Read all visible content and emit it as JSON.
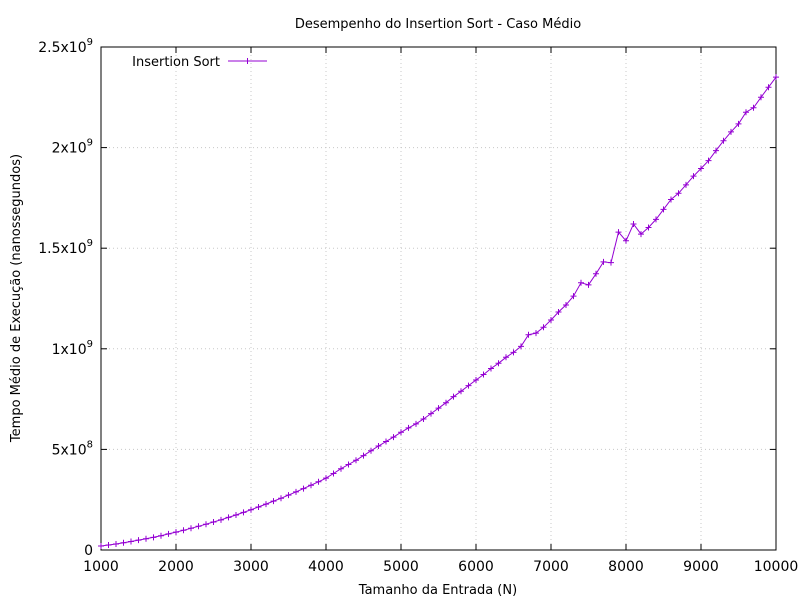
{
  "chart_data": {
    "type": "line",
    "title": "Desempenho do Insertion Sort - Caso Médio",
    "xlabel": "Tamanho da Entrada (N)",
    "ylabel": "Tempo Médio de Execução (nanossegundos)",
    "xlim": [
      1000,
      10000
    ],
    "ylim": [
      0,
      2500000000
    ],
    "grid": true,
    "legend_position": "top-left",
    "x_ticks": [
      {
        "value": 1000,
        "label": "1000"
      },
      {
        "value": 2000,
        "label": "2000"
      },
      {
        "value": 3000,
        "label": "3000"
      },
      {
        "value": 4000,
        "label": "4000"
      },
      {
        "value": 5000,
        "label": "5000"
      },
      {
        "value": 6000,
        "label": "6000"
      },
      {
        "value": 7000,
        "label": "7000"
      },
      {
        "value": 8000,
        "label": "8000"
      },
      {
        "value": 9000,
        "label": "9000"
      },
      {
        "value": 10000,
        "label": "10000"
      }
    ],
    "y_ticks": [
      {
        "value": 0,
        "mantissa": "0",
        "exponent": ""
      },
      {
        "value": 500000000,
        "mantissa": "5x10",
        "exponent": "8"
      },
      {
        "value": 1000000000,
        "mantissa": "1x10",
        "exponent": "9"
      },
      {
        "value": 1500000000,
        "mantissa": "1.5x10",
        "exponent": "9"
      },
      {
        "value": 2000000000,
        "mantissa": "2x10",
        "exponent": "9"
      },
      {
        "value": 2500000000,
        "mantissa": "2.5x10",
        "exponent": "9"
      }
    ],
    "series": [
      {
        "name": "Insertion Sort",
        "color": "#9400d3",
        "marker": "plus",
        "x": [
          1000,
          1100,
          1200,
          1300,
          1400,
          1500,
          1600,
          1700,
          1800,
          1900,
          2000,
          2100,
          2200,
          2300,
          2400,
          2500,
          2600,
          2700,
          2800,
          2900,
          3000,
          3100,
          3200,
          3300,
          3400,
          3500,
          3600,
          3700,
          3800,
          3900,
          4000,
          4100,
          4200,
          4300,
          4400,
          4500,
          4600,
          4700,
          4800,
          4900,
          5000,
          5100,
          5200,
          5300,
          5400,
          5500,
          5600,
          5700,
          5800,
          5900,
          6000,
          6100,
          6200,
          6300,
          6400,
          6500,
          6600,
          6700,
          6800,
          6900,
          7000,
          7100,
          7200,
          7300,
          7400,
          7500,
          7600,
          7700,
          7800,
          7900,
          8000,
          8100,
          8200,
          8300,
          8400,
          8500,
          8600,
          8700,
          8800,
          8900,
          9000,
          9100,
          9200,
          9300,
          9400,
          9500,
          9600,
          9700,
          9800,
          9900,
          10000
        ],
        "y": [
          20000000,
          25000000,
          30000000,
          36000000,
          42000000,
          49000000,
          56000000,
          63000000,
          71000000,
          80000000,
          89000000,
          98000000,
          108000000,
          118000000,
          128000000,
          139000000,
          150000000,
          162000000,
          174000000,
          187000000,
          200000000,
          214000000,
          228000000,
          243000000,
          257000000,
          273000000,
          289000000,
          305000000,
          322000000,
          339000000,
          357000000,
          380000000,
          404000000,
          425000000,
          446000000,
          469000000,
          493000000,
          517000000,
          539000000,
          561000000,
          585000000,
          607000000,
          627000000,
          651000000,
          678000000,
          705000000,
          732000000,
          762000000,
          789000000,
          817000000,
          845000000,
          872000000,
          902000000,
          928000000,
          958000000,
          982000000,
          1012000000,
          1070000000,
          1078000000,
          1107000000,
          1143000000,
          1183000000,
          1218000000,
          1262000000,
          1328000000,
          1318000000,
          1373000000,
          1432000000,
          1428000000,
          1580000000,
          1537000000,
          1620000000,
          1570000000,
          1603000000,
          1643000000,
          1693000000,
          1742000000,
          1773000000,
          1815000000,
          1858000000,
          1896000000,
          1935000000,
          1985000000,
          2034000000,
          2078000000,
          2118000000,
          2176000000,
          2198000000,
          2250000000,
          2300000000,
          2350000000
        ]
      }
    ]
  }
}
